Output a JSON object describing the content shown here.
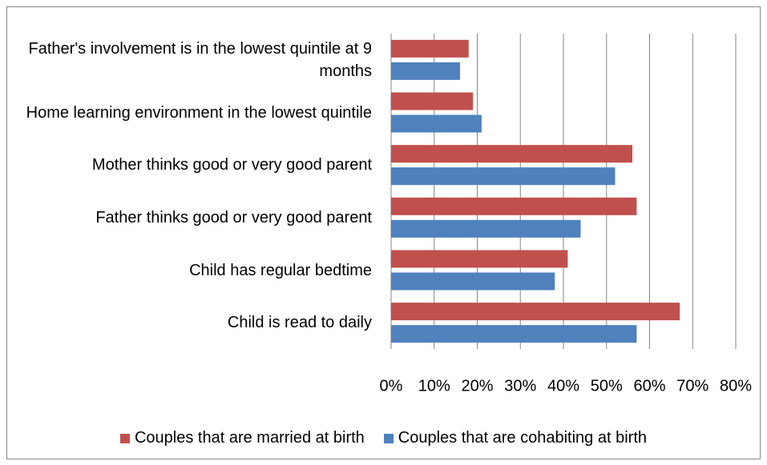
{
  "chart_data": {
    "type": "hbar",
    "categories": [
      "Father's involvement is in the lowest quintile at 9 months",
      "Home learning environment in the lowest quintile",
      "Mother thinks good or very good parent",
      "Father thinks good or very good parent",
      "Child has regular bedtime",
      "Child is read to daily"
    ],
    "series": [
      {
        "name": "Couples that are married at birth",
        "color": "#c0504d",
        "values": [
          18,
          19,
          56,
          57,
          41,
          67
        ]
      },
      {
        "name": "Couples that are cohabiting at birth",
        "color": "#4f81bd",
        "values": [
          16,
          21,
          52,
          44,
          38,
          57
        ]
      }
    ],
    "xlim": [
      0,
      80
    ],
    "xticks": [
      {
        "value": 0,
        "label": "0%"
      },
      {
        "value": 10,
        "label": "10%"
      },
      {
        "value": 20,
        "label": "20%"
      },
      {
        "value": 30,
        "label": "30%"
      },
      {
        "value": 40,
        "label": "40%"
      },
      {
        "value": 50,
        "label": "50%"
      },
      {
        "value": 60,
        "label": "60%"
      },
      {
        "value": 70,
        "label": "70%"
      },
      {
        "value": 80,
        "label": "80%"
      }
    ],
    "grid": true,
    "legend": "bottom"
  }
}
